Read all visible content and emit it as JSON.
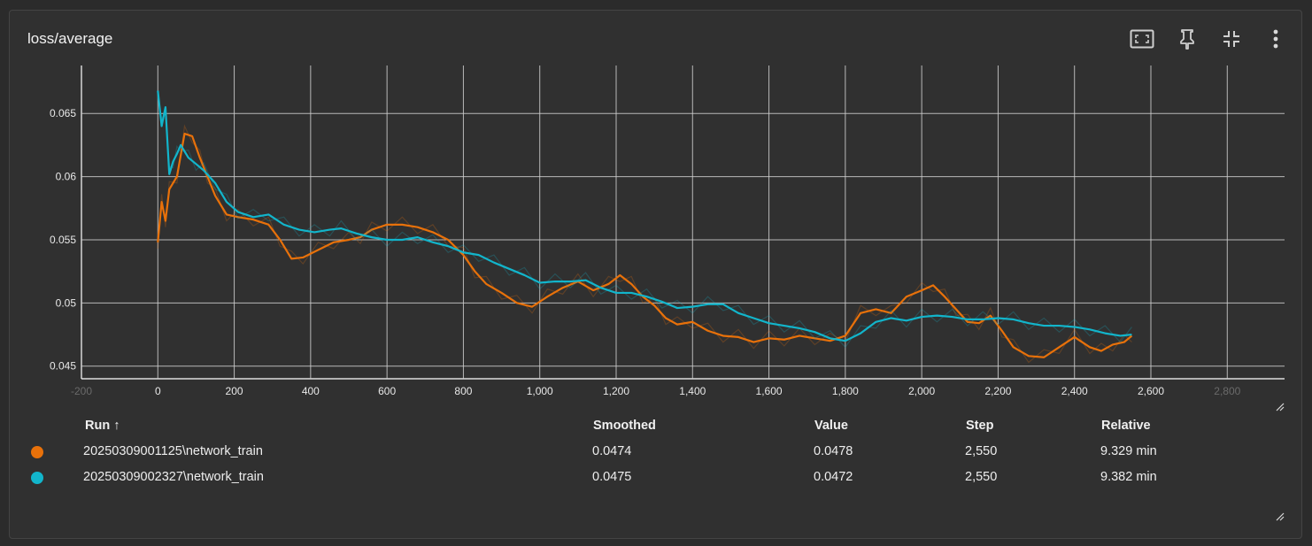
{
  "card": {
    "title": "loss/average"
  },
  "toolbar": [
    {
      "name": "fit-domain-icon"
    },
    {
      "name": "pin-icon"
    },
    {
      "name": "collapse-icon"
    },
    {
      "name": "more-vert-icon"
    }
  ],
  "table": {
    "headers": {
      "run": "Run ↑",
      "smoothed": "Smoothed",
      "value": "Value",
      "step": "Step",
      "relative": "Relative"
    },
    "rows": [
      {
        "color": "#e8710a",
        "run": "20250309001125\\network_train",
        "smoothed": "0.0474",
        "value": "0.0478",
        "step": "2,550",
        "relative": "9.329 min"
      },
      {
        "color": "#12b5cb",
        "run": "20250309002327\\network_train",
        "smoothed": "0.0475",
        "value": "0.0472",
        "step": "2,550",
        "relative": "9.382 min"
      }
    ]
  },
  "chart_data": {
    "type": "line",
    "xlabel": "",
    "ylabel": "",
    "xlim": [
      -200,
      2950
    ],
    "ylim": [
      0.044,
      0.0688
    ],
    "x_ticks": [
      "-200",
      "0",
      "200",
      "400",
      "600",
      "800",
      "1,000",
      "1,200",
      "1,400",
      "1,600",
      "1,800",
      "2,000",
      "2,200",
      "2,400",
      "2,600",
      "2,800"
    ],
    "y_ticks": [
      "0.045",
      "0.05",
      "0.055",
      "0.06",
      "0.065"
    ],
    "grid": true,
    "series": [
      {
        "name": "20250309001125\\network_train",
        "color": "#e8710a",
        "x": [
          0,
          10,
          20,
          30,
          50,
          70,
          90,
          110,
          130,
          150,
          180,
          210,
          250,
          290,
          320,
          350,
          380,
          420,
          460,
          500,
          530,
          560,
          600,
          640,
          680,
          720,
          760,
          800,
          830,
          860,
          900,
          940,
          980,
          1020,
          1060,
          1100,
          1140,
          1180,
          1210,
          1240,
          1270,
          1300,
          1330,
          1360,
          1400,
          1440,
          1480,
          1520,
          1560,
          1600,
          1640,
          1680,
          1720,
          1760,
          1800,
          1840,
          1880,
          1920,
          1960,
          2000,
          2030,
          2060,
          2090,
          2120,
          2150,
          2180,
          2210,
          2240,
          2280,
          2320,
          2360,
          2400,
          2440,
          2470,
          2500,
          2530,
          2550
        ],
        "y": [
          0.0548,
          0.058,
          0.0565,
          0.059,
          0.06,
          0.0634,
          0.0632,
          0.0615,
          0.06,
          0.0585,
          0.057,
          0.0568,
          0.0566,
          0.0562,
          0.055,
          0.0535,
          0.0536,
          0.0542,
          0.0548,
          0.055,
          0.0552,
          0.0558,
          0.0562,
          0.0562,
          0.056,
          0.0556,
          0.055,
          0.0538,
          0.0525,
          0.0515,
          0.0508,
          0.05,
          0.0497,
          0.0505,
          0.0512,
          0.0517,
          0.051,
          0.0515,
          0.0522,
          0.0515,
          0.0505,
          0.0498,
          0.0488,
          0.0483,
          0.0485,
          0.0478,
          0.0474,
          0.0473,
          0.0469,
          0.0472,
          0.0471,
          0.0474,
          0.0472,
          0.047,
          0.0474,
          0.0492,
          0.0495,
          0.0492,
          0.0505,
          0.051,
          0.0514,
          0.0505,
          0.0495,
          0.0485,
          0.0484,
          0.049,
          0.0478,
          0.0465,
          0.0458,
          0.0457,
          0.0465,
          0.0473,
          0.0465,
          0.0462,
          0.0467,
          0.0469,
          0.0474
        ]
      },
      {
        "name": "20250309002327\\network_train",
        "color": "#12b5cb",
        "x": [
          0,
          10,
          20,
          30,
          40,
          50,
          60,
          80,
          100,
          120,
          150,
          180,
          210,
          250,
          290,
          330,
          370,
          410,
          450,
          480,
          520,
          560,
          600,
          640,
          680,
          720,
          760,
          800,
          840,
          880,
          920,
          960,
          1000,
          1040,
          1080,
          1120,
          1160,
          1200,
          1240,
          1280,
          1320,
          1360,
          1400,
          1440,
          1480,
          1520,
          1560,
          1600,
          1640,
          1680,
          1720,
          1760,
          1800,
          1840,
          1880,
          1920,
          1960,
          2000,
          2040,
          2080,
          2120,
          2160,
          2200,
          2240,
          2280,
          2320,
          2360,
          2400,
          2440,
          2480,
          2520,
          2550
        ],
        "y": [
          0.0668,
          0.064,
          0.0655,
          0.0602,
          0.0612,
          0.0618,
          0.0625,
          0.0615,
          0.061,
          0.0605,
          0.0595,
          0.058,
          0.0572,
          0.0568,
          0.057,
          0.0562,
          0.0558,
          0.0556,
          0.0558,
          0.0559,
          0.0555,
          0.0552,
          0.055,
          0.055,
          0.0552,
          0.0548,
          0.0545,
          0.054,
          0.0538,
          0.0532,
          0.0527,
          0.0522,
          0.0516,
          0.0517,
          0.0517,
          0.0518,
          0.0512,
          0.0508,
          0.0508,
          0.0505,
          0.0501,
          0.0496,
          0.0497,
          0.0499,
          0.0499,
          0.0492,
          0.0488,
          0.0484,
          0.0482,
          0.048,
          0.0477,
          0.0472,
          0.047,
          0.0476,
          0.0485,
          0.0488,
          0.0486,
          0.0489,
          0.049,
          0.0489,
          0.0487,
          0.0487,
          0.0488,
          0.0487,
          0.0484,
          0.0482,
          0.0482,
          0.0481,
          0.0479,
          0.0476,
          0.0474,
          0.0475
        ]
      }
    ]
  }
}
